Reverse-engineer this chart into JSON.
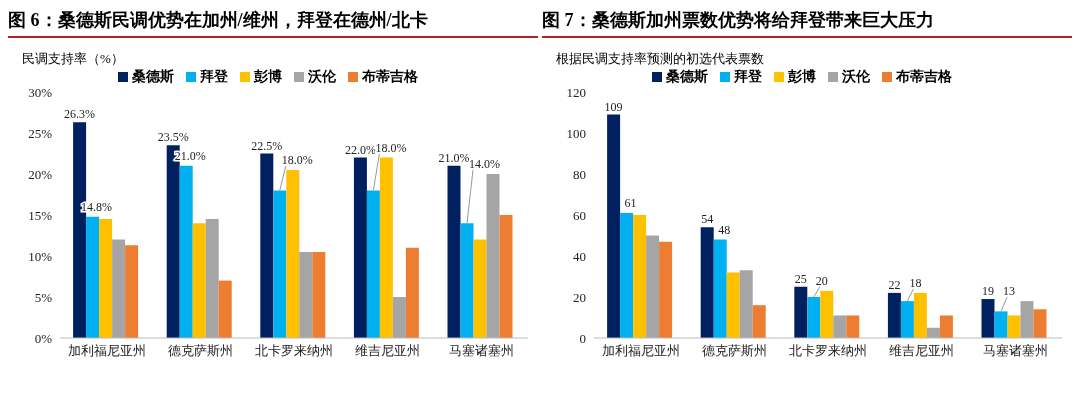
{
  "chart_data": [
    {
      "type": "bar",
      "title": "图 6：桑德斯民调优势在加州/维州，拜登在德州/北卡",
      "ylabel": "民调支持率（%）",
      "categories": [
        "加利福尼亚州",
        "德克萨斯州",
        "北卡罗来纳州",
        "维吉尼亚州",
        "马塞诸塞州"
      ],
      "series": [
        {
          "name": "桑德斯",
          "color": "#002060",
          "values": [
            26.3,
            23.5,
            22.5,
            22.0,
            21.0
          ],
          "value_labels": [
            "26.3%",
            "23.5%",
            "22.5%",
            "22.0%",
            "21.0%"
          ]
        },
        {
          "name": "拜登",
          "color": "#00b0f0",
          "values": [
            14.8,
            21.0,
            18.0,
            18.0,
            14.0
          ],
          "value_labels": [
            "14.8%",
            "21.0%",
            "18.0%",
            "18.0%",
            "14.0%"
          ]
        },
        {
          "name": "彭博",
          "color": "#ffc000",
          "values": [
            14.5,
            14.0,
            20.5,
            22.0,
            12.0
          ]
        },
        {
          "name": "沃伦",
          "color": "#a5a5a5",
          "values": [
            12.0,
            14.5,
            10.5,
            5.0,
            20.0
          ]
        },
        {
          "name": "布蒂吉格",
          "color": "#ed7d31",
          "values": [
            11.3,
            7.0,
            10.5,
            11.0,
            15.0
          ]
        }
      ],
      "ylim": [
        0,
        30
      ],
      "yticks": [
        {
          "value": 0,
          "label": "0%"
        },
        {
          "value": 5,
          "label": "5%"
        },
        {
          "value": 10,
          "label": "10%"
        },
        {
          "value": 15,
          "label": "15%"
        },
        {
          "value": 20,
          "label": "20%"
        },
        {
          "value": 25,
          "label": "25%"
        },
        {
          "value": 30,
          "label": "30%"
        }
      ],
      "grid": false,
      "legend": "top"
    },
    {
      "type": "bar",
      "title": "图 7：桑德斯加州票数优势将给拜登带来巨大压力",
      "ylabel": "根据民调支持率预测的初选代表票数",
      "categories": [
        "加利福尼亚州",
        "德克萨斯州",
        "北卡罗来纳州",
        "维吉尼亚州",
        "马塞诸塞州"
      ],
      "series": [
        {
          "name": "桑德斯",
          "color": "#002060",
          "values": [
            109,
            54,
            25,
            22,
            19
          ],
          "value_labels": [
            "109",
            "54",
            "25",
            "22",
            "19"
          ]
        },
        {
          "name": "拜登",
          "color": "#00b0f0",
          "values": [
            61,
            48,
            20,
            18,
            13
          ],
          "value_labels": [
            "61",
            "48",
            "20",
            "18",
            "13"
          ]
        },
        {
          "name": "彭博",
          "color": "#ffc000",
          "values": [
            60,
            32,
            23,
            22,
            11
          ]
        },
        {
          "name": "沃伦",
          "color": "#a5a5a5",
          "values": [
            50,
            33,
            11,
            5,
            18
          ]
        },
        {
          "name": "布蒂吉格",
          "color": "#ed7d31",
          "values": [
            47,
            16,
            11,
            11,
            14
          ]
        }
      ],
      "ylim": [
        0,
        120
      ],
      "yticks": [
        0,
        20,
        40,
        60,
        80,
        100,
        120
      ],
      "grid": false,
      "legend": "top"
    }
  ]
}
